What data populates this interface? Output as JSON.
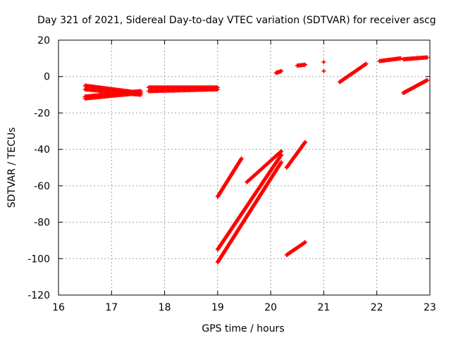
{
  "chart_data": {
    "type": "scatter",
    "title": "Day 321 of 2021, Sidereal Day-to-day VTEC variation (SDTVAR) for receiver ascg",
    "xlabel": "GPS time / hours",
    "ylabel": "SDTVAR / TECUs",
    "xlim": [
      16,
      23
    ],
    "ylim": [
      -120,
      20
    ],
    "xticks": [
      "16",
      "17",
      "18",
      "19",
      "20",
      "21",
      "22",
      "23"
    ],
    "yticks": [
      "20",
      "0",
      "-20",
      "-40",
      "-60",
      "-80",
      "-100",
      "-120"
    ],
    "grid": true,
    "marker": "plus",
    "color": "#ff0000",
    "segments": [
      {
        "x0": 16.5,
        "x1": 17.55,
        "y0": -5,
        "y1": -9
      },
      {
        "x0": 16.5,
        "x1": 17.55,
        "y0": -7,
        "y1": -10
      },
      {
        "x0": 16.5,
        "x1": 17.55,
        "y0": -11,
        "y1": -8
      },
      {
        "x0": 16.5,
        "x1": 17.55,
        "y0": -12,
        "y1": -9
      },
      {
        "x0": 17.7,
        "x1": 19.0,
        "y0": -6,
        "y1": -6
      },
      {
        "x0": 17.7,
        "x1": 19.0,
        "y0": -8,
        "y1": -7
      },
      {
        "x0": 19.0,
        "x1": 19.45,
        "y0": -66,
        "y1": -45
      },
      {
        "x0": 19.0,
        "x1": 20.2,
        "y0": -95,
        "y1": -43
      },
      {
        "x0": 19.0,
        "x1": 20.2,
        "y0": -102,
        "y1": -47
      },
      {
        "x0": 19.55,
        "x1": 20.2,
        "y0": -58,
        "y1": -41
      },
      {
        "x0": 20.1,
        "x1": 20.2,
        "y0": 2,
        "y1": 3
      },
      {
        "x0": 20.3,
        "x1": 20.65,
        "y0": -50,
        "y1": -36
      },
      {
        "x0": 20.3,
        "x1": 20.65,
        "y0": -98,
        "y1": -91
      },
      {
        "x0": 20.5,
        "x1": 20.65,
        "y0": 6,
        "y1": 6.5
      },
      {
        "x0": 21.3,
        "x1": 21.8,
        "y0": -3,
        "y1": 7
      },
      {
        "x0": 22.05,
        "x1": 22.45,
        "y0": 8.5,
        "y1": 10
      },
      {
        "x0": 22.5,
        "x1": 22.95,
        "y0": 9.5,
        "y1": 10.5
      },
      {
        "x0": 22.5,
        "x1": 22.95,
        "y0": -9,
        "y1": -2
      }
    ],
    "points": [
      {
        "x": 21.0,
        "y": 8
      },
      {
        "x": 21.0,
        "y": 3
      }
    ]
  }
}
